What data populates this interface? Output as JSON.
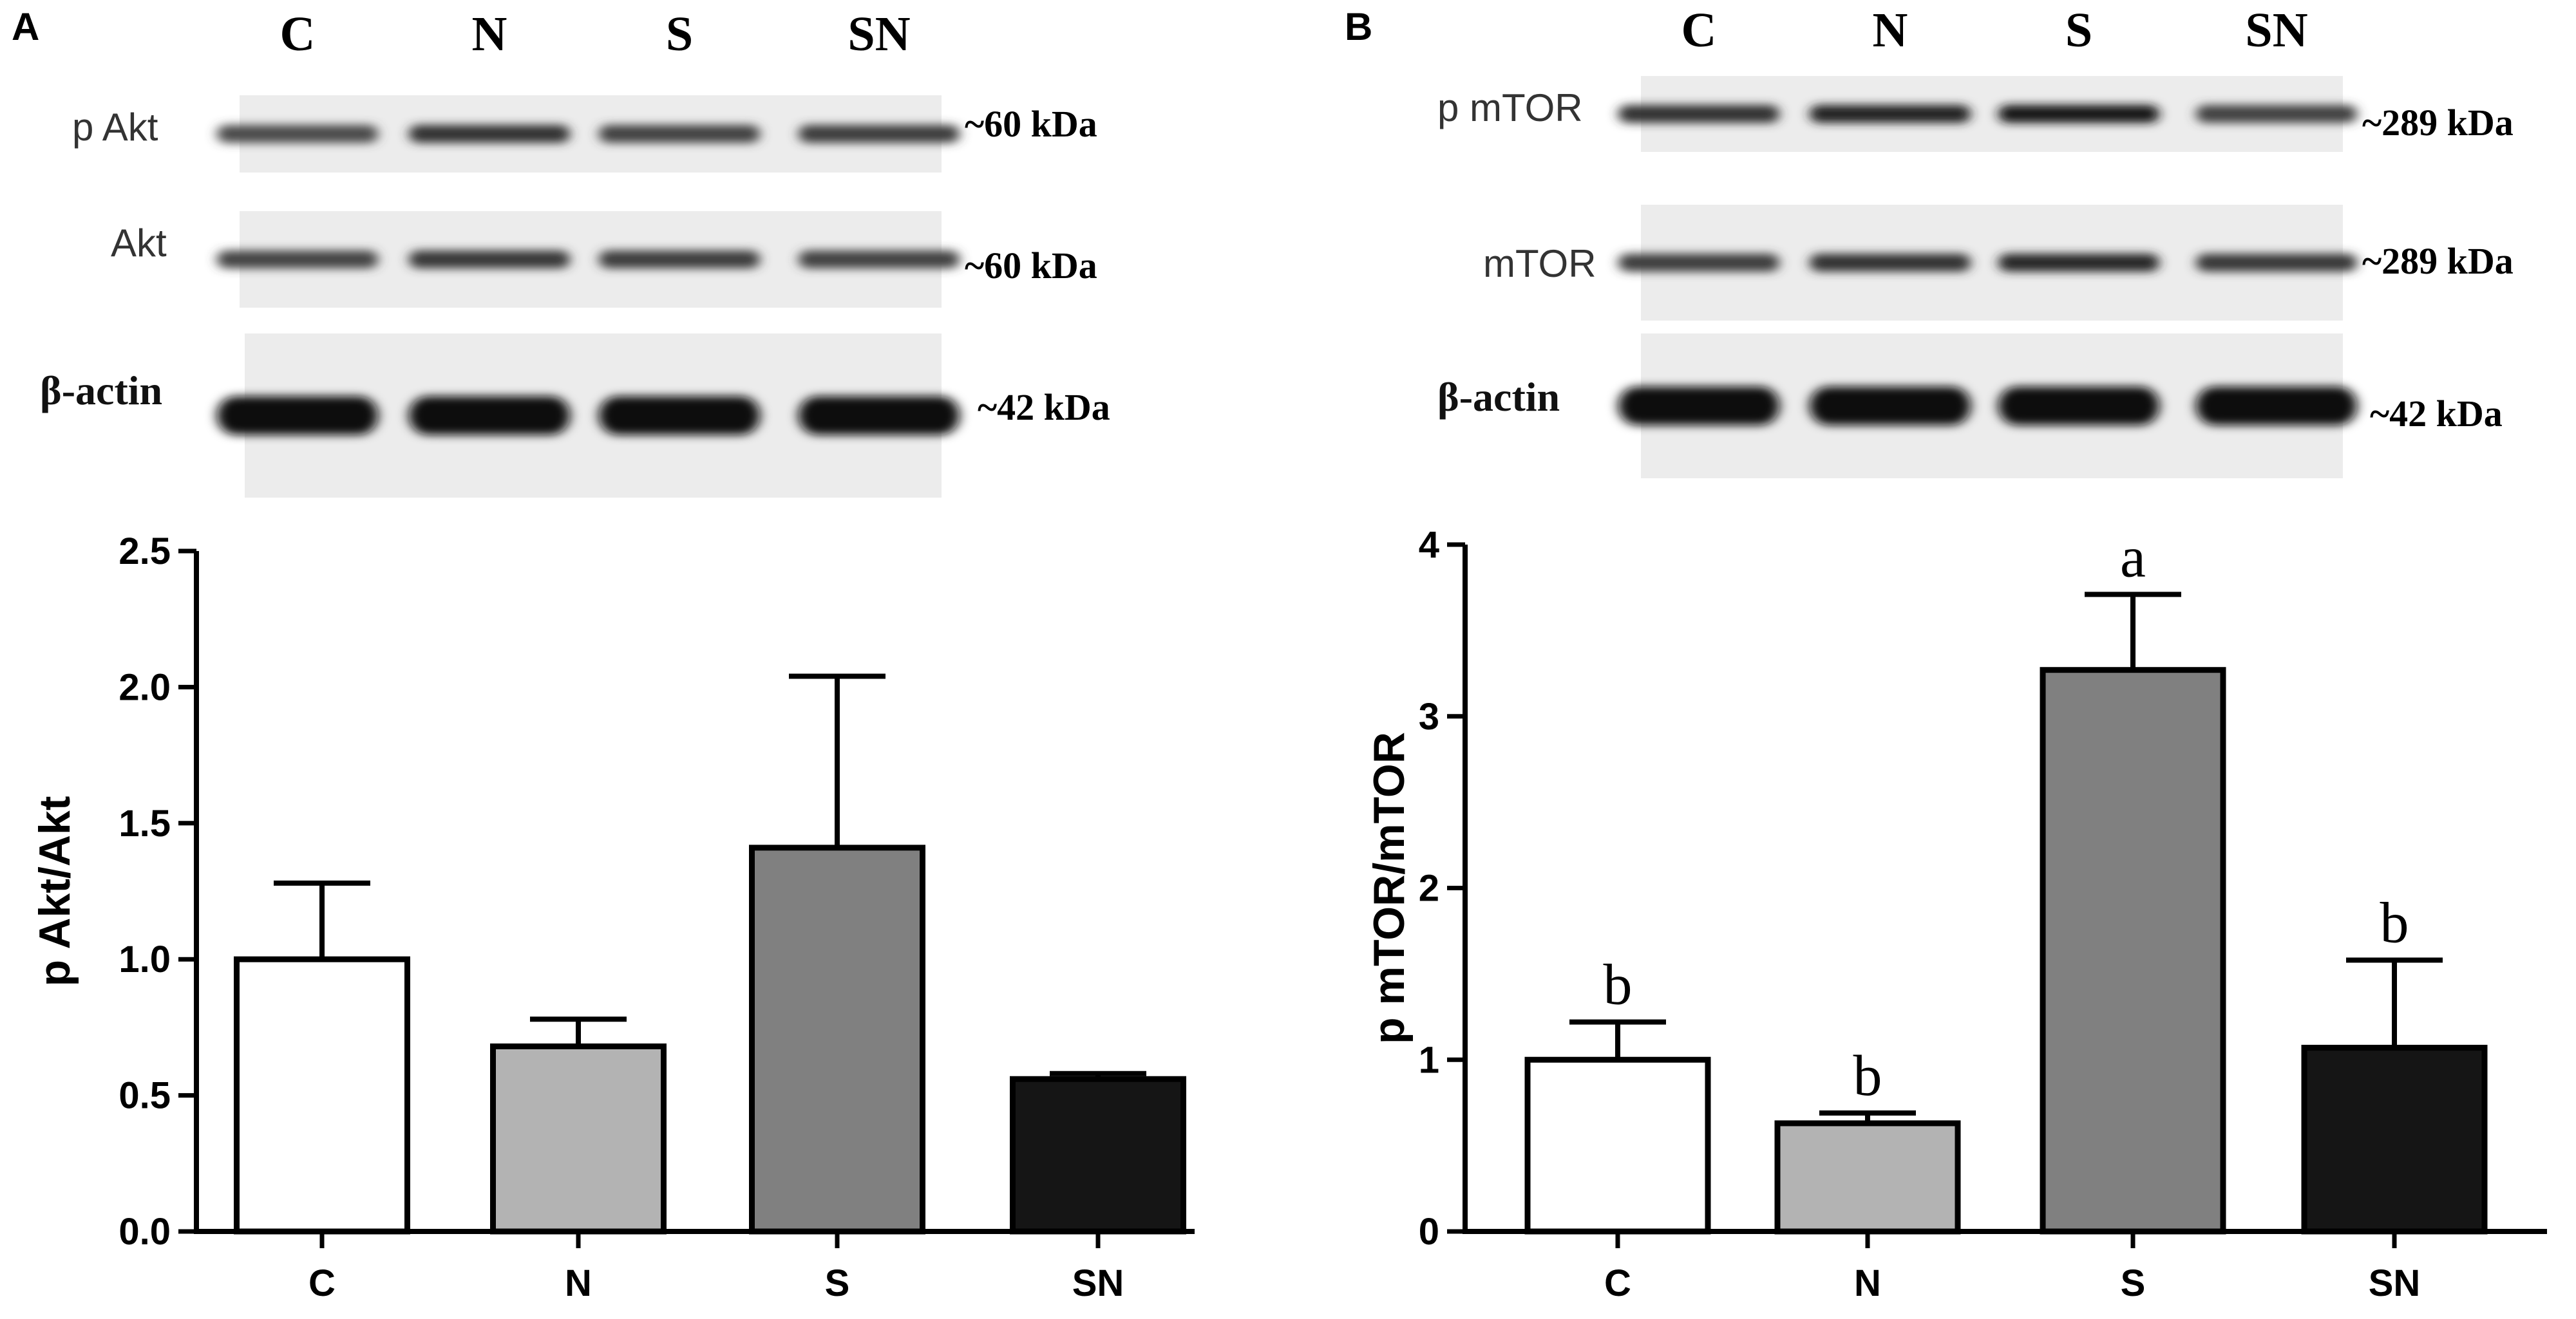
{
  "panels": [
    {
      "letter": "A",
      "lanes": [
        "C",
        "N",
        "S",
        "SN"
      ],
      "blots": [
        {
          "label": "p Akt",
          "mw": "~60 kDa",
          "style": "sans",
          "intensity": [
            0.55,
            0.75,
            0.62,
            0.66
          ]
        },
        {
          "label": "Akt",
          "mw": "~60 kDa",
          "style": "sans",
          "intensity": [
            0.6,
            0.7,
            0.66,
            0.62
          ]
        },
        {
          "label": "β-actin",
          "mw": "~42 kDa",
          "style": "serif",
          "intensity": [
            1.0,
            1.0,
            1.0,
            1.0
          ]
        }
      ]
    },
    {
      "letter": "B",
      "lanes": [
        "C",
        "N",
        "S",
        "SN"
      ],
      "blots": [
        {
          "label": "p mTOR",
          "mw": "~289 kDa",
          "style": "sans",
          "intensity": [
            0.75,
            0.85,
            0.95,
            0.62
          ]
        },
        {
          "label": "mTOR",
          "mw": "~289 kDa",
          "style": "sans",
          "intensity": [
            0.66,
            0.74,
            0.82,
            0.7
          ]
        },
        {
          "label": "β-actin",
          "mw": "~42 kDa",
          "style": "serif",
          "intensity": [
            1.0,
            1.0,
            1.0,
            1.0
          ]
        }
      ]
    }
  ],
  "chart_data": [
    {
      "type": "bar",
      "panel": "A",
      "categories": [
        "C",
        "N",
        "S",
        "SN"
      ],
      "values": [
        1.0,
        0.68,
        1.41,
        0.56
      ],
      "errors": [
        0.28,
        0.1,
        0.63,
        0.02
      ],
      "fill_colors": [
        "#ffffff",
        "#b3b3b3",
        "#808080",
        "#151515"
      ],
      "ylabel": "p Akt/Akt",
      "ylim": [
        0,
        2.5
      ],
      "yticks": [
        "0.0",
        "0.5",
        "1.0",
        "1.5",
        "2.0",
        "2.5"
      ],
      "significance": [
        "",
        "",
        "",
        ""
      ],
      "grid": false
    },
    {
      "type": "bar",
      "panel": "B",
      "categories": [
        "C",
        "N",
        "S",
        "SN"
      ],
      "values": [
        1.0,
        0.63,
        3.27,
        1.07
      ],
      "errors": [
        0.22,
        0.06,
        0.44,
        0.51
      ],
      "fill_colors": [
        "#ffffff",
        "#b3b3b3",
        "#808080",
        "#151515"
      ],
      "ylabel": "p mTOR/mTOR",
      "ylim": [
        0,
        4
      ],
      "yticks": [
        "0",
        "1",
        "2",
        "3",
        "4"
      ],
      "significance": [
        "b",
        "b",
        "a",
        "b"
      ],
      "grid": false
    }
  ]
}
